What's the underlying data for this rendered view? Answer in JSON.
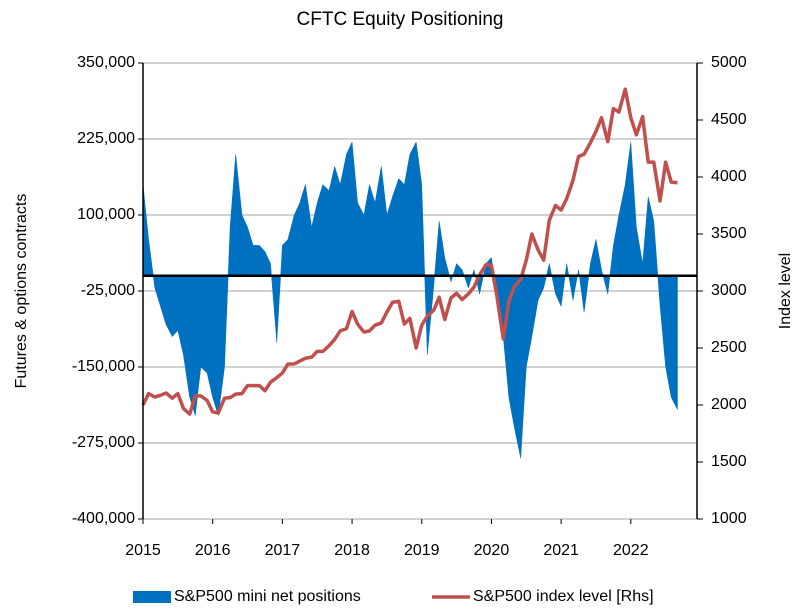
{
  "chart_data": {
    "type": "area_line",
    "title": "CFTC Equity Positioning",
    "y_label": "Futures & options contracts",
    "y2_label": "Index level",
    "x": [
      2015,
      2015.08,
      2015.17,
      2015.25,
      2015.33,
      2015.42,
      2015.5,
      2015.58,
      2015.67,
      2015.75,
      2015.83,
      2015.92,
      2016,
      2016.08,
      2016.17,
      2016.25,
      2016.33,
      2016.42,
      2016.5,
      2016.58,
      2016.67,
      2016.75,
      2016.83,
      2016.92,
      2017,
      2017.08,
      2017.17,
      2017.25,
      2017.33,
      2017.42,
      2017.5,
      2017.58,
      2017.67,
      2017.75,
      2017.83,
      2017.92,
      2018,
      2018.08,
      2018.17,
      2018.25,
      2018.33,
      2018.42,
      2018.5,
      2018.58,
      2018.67,
      2018.75,
      2018.83,
      2018.92,
      2019,
      2019.08,
      2019.17,
      2019.25,
      2019.33,
      2019.42,
      2019.5,
      2019.58,
      2019.67,
      2019.75,
      2019.83,
      2019.92,
      2020,
      2020.08,
      2020.17,
      2020.25,
      2020.33,
      2020.42,
      2020.5,
      2020.58,
      2020.67,
      2020.75,
      2020.83,
      2020.92,
      2021,
      2021.08,
      2021.17,
      2021.25,
      2021.33,
      2021.42,
      2021.5,
      2021.58,
      2021.67,
      2021.75,
      2021.83,
      2021.92,
      2022,
      2022.08,
      2022.17,
      2022.25,
      2022.33,
      2022.42,
      2022.5,
      2022.58,
      2022.67
    ],
    "series": [
      {
        "name": "S&P500 mini net positions",
        "kind": "area",
        "color": "#0070c0",
        "values": [
          150000,
          60000,
          -20000,
          -50000,
          -80000,
          -100000,
          -90000,
          -130000,
          -200000,
          -230000,
          -150000,
          -160000,
          -200000,
          -230000,
          -150000,
          80000,
          200000,
          100000,
          80000,
          50000,
          50000,
          40000,
          20000,
          -110000,
          50000,
          60000,
          100000,
          120000,
          150000,
          80000,
          120000,
          150000,
          140000,
          180000,
          150000,
          200000,
          220000,
          120000,
          100000,
          150000,
          120000,
          180000,
          100000,
          130000,
          160000,
          150000,
          200000,
          220000,
          150000,
          -130000,
          -20000,
          90000,
          30000,
          -10000,
          20000,
          10000,
          -20000,
          10000,
          -30000,
          20000,
          30000,
          -40000,
          -100000,
          -200000,
          -250000,
          -300000,
          -150000,
          -100000,
          -40000,
          -20000,
          20000,
          -30000,
          -50000,
          20000,
          -40000,
          10000,
          -60000,
          20000,
          60000,
          10000,
          -30000,
          50000,
          100000,
          150000,
          220000,
          80000,
          20000,
          130000,
          90000,
          -50000,
          -150000,
          -200000,
          -220000
        ]
      },
      {
        "name": "S&P500 index level [Rhs]",
        "kind": "line",
        "axis": "y2",
        "color": "#c0504d",
        "values": [
          2000,
          2100,
          2070,
          2085,
          2105,
          2060,
          2100,
          1970,
          1920,
          2080,
          2080,
          2040,
          1940,
          1930,
          2060,
          2065,
          2095,
          2100,
          2170,
          2170,
          2170,
          2125,
          2200,
          2240,
          2280,
          2360,
          2360,
          2385,
          2410,
          2420,
          2470,
          2470,
          2520,
          2575,
          2650,
          2670,
          2820,
          2710,
          2640,
          2650,
          2700,
          2720,
          2815,
          2900,
          2910,
          2710,
          2760,
          2500,
          2700,
          2780,
          2830,
          2945,
          2750,
          2940,
          2980,
          2925,
          2975,
          3035,
          3140,
          3230,
          3225,
          2950,
          2580,
          2910,
          3040,
          3100,
          3270,
          3500,
          3360,
          3270,
          3620,
          3750,
          3710,
          3810,
          3970,
          4180,
          4200,
          4300,
          4400,
          4520,
          4310,
          4600,
          4570,
          4770,
          4520,
          4370,
          4530,
          4130,
          4130,
          3790,
          4130,
          3955,
          3950
        ]
      }
    ],
    "xlim": [
      2015,
      2022.95
    ],
    "xticks": [
      2015,
      2016,
      2017,
      2018,
      2019,
      2020,
      2021,
      2022
    ],
    "ylim": [
      -400000,
      350000
    ],
    "yticks": [
      {
        "value": -400000,
        "label": "-400,000"
      },
      {
        "value": -275000,
        "label": "-275,000"
      },
      {
        "value": -150000,
        "label": "-150,000"
      },
      {
        "value": -25000,
        "label": "-25,000"
      },
      {
        "value": 100000,
        "label": "100,000"
      },
      {
        "value": 225000,
        "label": "225,000"
      },
      {
        "value": 350000,
        "label": "350,000"
      }
    ],
    "y2lim": [
      1000,
      5000
    ],
    "y2ticks": [
      1000,
      1500,
      2000,
      2500,
      3000,
      3500,
      4000,
      4500,
      5000
    ],
    "grid": true,
    "legend": "bottom"
  }
}
